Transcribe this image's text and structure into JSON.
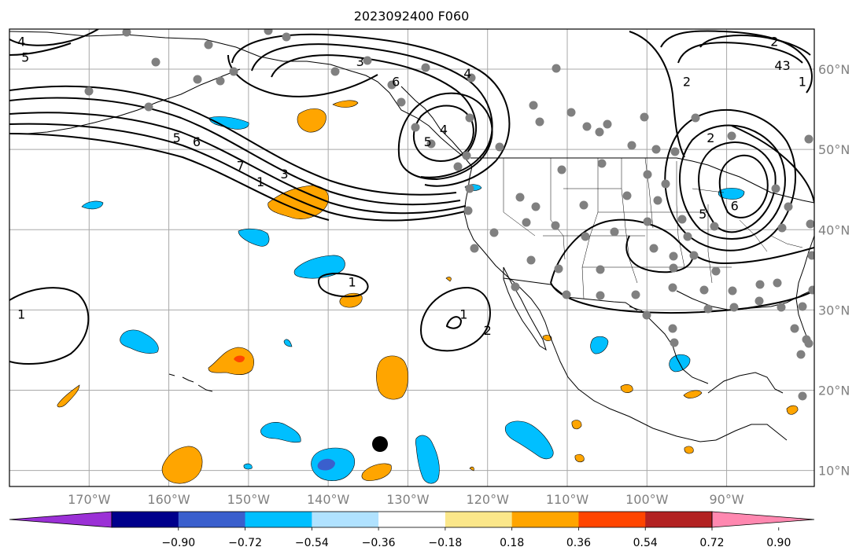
{
  "title": "2023092400 F060",
  "map": {
    "lon_range": [
      -180,
      -79
    ],
    "lat_range": [
      8,
      65
    ],
    "lon_ticks": [
      {
        "value": -170,
        "label": "170°W"
      },
      {
        "value": -160,
        "label": "160°W"
      },
      {
        "value": -150,
        "label": "150°W"
      },
      {
        "value": -140,
        "label": "140°W"
      },
      {
        "value": -130,
        "label": "130°W"
      },
      {
        "value": -120,
        "label": "120°W"
      },
      {
        "value": -110,
        "label": "110°W"
      },
      {
        "value": -100,
        "label": "100°W"
      },
      {
        "value": -90,
        "label": "90°W"
      }
    ],
    "lat_ticks": [
      {
        "value": 10,
        "label": "10°N"
      },
      {
        "value": 20,
        "label": "20°N"
      },
      {
        "value": 30,
        "label": "30°N"
      },
      {
        "value": 40,
        "label": "40°N"
      },
      {
        "value": 50,
        "label": "50°N"
      },
      {
        "value": 60,
        "label": "60°N"
      }
    ],
    "grid": true,
    "contour_labels": [
      {
        "text": "4",
        "lon": -178.5,
        "lat": 63.5
      },
      {
        "text": "5",
        "lon": -178,
        "lat": 61.5
      },
      {
        "text": "3",
        "lon": -136,
        "lat": 61
      },
      {
        "text": "6",
        "lon": -131.5,
        "lat": 58.5
      },
      {
        "text": "4",
        "lon": -122.5,
        "lat": 59.5
      },
      {
        "text": "5",
        "lon": -159,
        "lat": 51.5
      },
      {
        "text": "6",
        "lon": -156.5,
        "lat": 51
      },
      {
        "text": "7",
        "lon": -151,
        "lat": 48
      },
      {
        "text": "3",
        "lon": -145.5,
        "lat": 47
      },
      {
        "text": "1",
        "lon": -148.5,
        "lat": 46
      },
      {
        "text": "4",
        "lon": -125.5,
        "lat": 52.5
      },
      {
        "text": "5",
        "lon": -127.5,
        "lat": 51
      },
      {
        "text": "1",
        "lon": -137,
        "lat": 33.5
      },
      {
        "text": "1",
        "lon": -123,
        "lat": 29.5
      },
      {
        "text": "2",
        "lon": -120,
        "lat": 27.5
      },
      {
        "text": "1",
        "lon": -178.5,
        "lat": 29.5
      },
      {
        "text": "2",
        "lon": -92,
        "lat": 51.5
      },
      {
        "text": "2",
        "lon": -95,
        "lat": 58.5
      },
      {
        "text": "2",
        "lon": -84,
        "lat": 63.5
      },
      {
        "text": "4",
        "lon": -83.5,
        "lat": 60.5
      },
      {
        "text": "3",
        "lon": -82.5,
        "lat": 60.5
      },
      {
        "text": "1",
        "lon": -80.5,
        "lat": 58.5
      },
      {
        "text": "5",
        "lon": -93,
        "lat": 42
      },
      {
        "text": "6",
        "lon": -89,
        "lat": 43
      }
    ]
  },
  "colorbar": {
    "ticks": [
      "−0.90",
      "−0.72",
      "−0.54",
      "−0.36",
      "−0.18",
      "0.18",
      "0.36",
      "0.54",
      "0.72",
      "0.90"
    ],
    "colors": [
      "#9b30d6",
      "#00008b",
      "#3a5fcd",
      "#00bfff",
      "#b0e2ff",
      "#ffffff",
      "#fbe78a",
      "#ffa500",
      "#ff4500",
      "#b22222",
      "#ff88b0"
    ],
    "extend": "both"
  }
}
